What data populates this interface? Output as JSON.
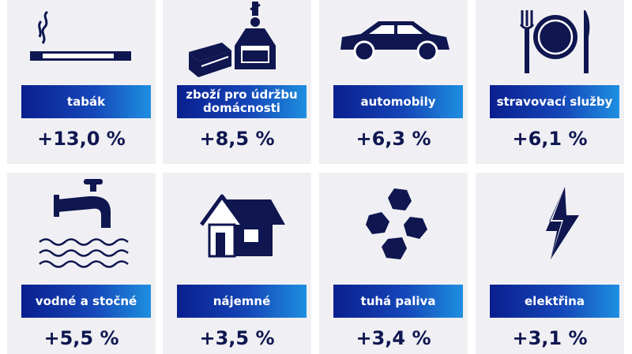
{
  "colors": {
    "navy": "#0f1650",
    "label_start": "#0a1f8f",
    "label_end": "#1e8fe0",
    "card_bg": "#f0f0f4"
  },
  "items": [
    {
      "label": "tabák",
      "value": "+13,0 %",
      "icon": "cigarette-icon"
    },
    {
      "label": "zboží pro údržbu domácnosti",
      "value": "+8,5 %",
      "icon": "cleaning-products-icon"
    },
    {
      "label": "automobily",
      "value": "+6,3 %",
      "icon": "car-icon"
    },
    {
      "label": "stravovací služby",
      "value": "+6,1 %",
      "icon": "plate-cutlery-icon"
    },
    {
      "label": "vodné a stočné",
      "value": "+5,5 %",
      "icon": "water-tap-icon"
    },
    {
      "label": "nájemné",
      "value": "+3,5 %",
      "icon": "house-icon"
    },
    {
      "label": "tuhá paliva",
      "value": "+3,4 %",
      "icon": "coal-icon"
    },
    {
      "label": "elektřina",
      "value": "+3,1 %",
      "icon": "lightning-icon"
    }
  ]
}
